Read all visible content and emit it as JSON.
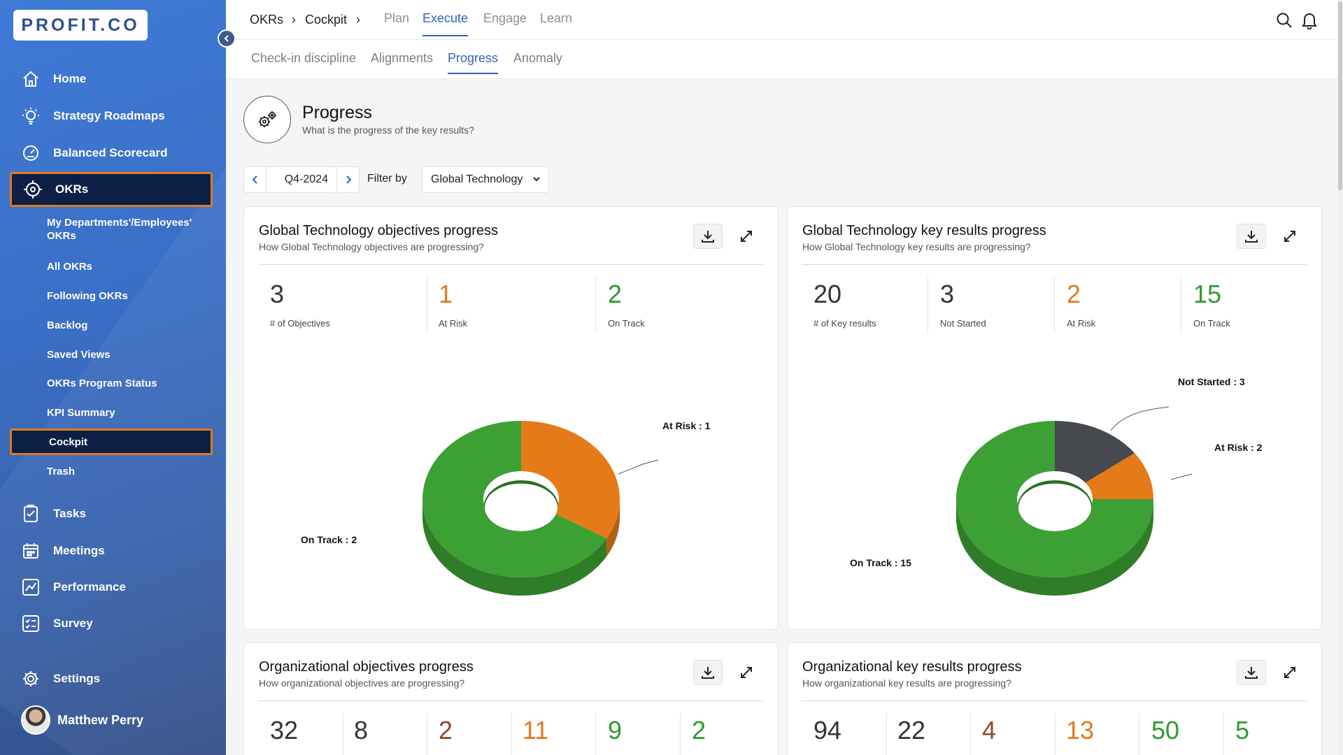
{
  "app": {
    "logo": "PROFIT.CO"
  },
  "sidebar": {
    "items": [
      {
        "label": "Home",
        "icon": "home-icon"
      },
      {
        "label": "Strategy Roadmaps",
        "icon": "lightbulb-icon"
      },
      {
        "label": "Balanced Scorecard",
        "icon": "gauge-icon"
      },
      {
        "label": "OKRs",
        "icon": "target-icon",
        "active": true
      },
      {
        "label": "Tasks",
        "icon": "clipboard-icon"
      },
      {
        "label": "Meetings",
        "icon": "calendar-icon"
      },
      {
        "label": "Performance",
        "icon": "chart-line-icon"
      },
      {
        "label": "Survey",
        "icon": "checklist-icon"
      },
      {
        "label": "Settings",
        "icon": "gear-icon"
      }
    ],
    "okr_subitems": [
      {
        "label": "My Departments'/Employees' OKRs"
      },
      {
        "label": "All OKRs"
      },
      {
        "label": "Following OKRs"
      },
      {
        "label": "Backlog"
      },
      {
        "label": "Saved Views"
      },
      {
        "label": "OKRs Program Status"
      },
      {
        "label": "KPI Summary"
      },
      {
        "label": "Cockpit",
        "active": true
      },
      {
        "label": "Trash"
      }
    ],
    "user": "Matthew Perry"
  },
  "breadcrumb": {
    "first": "OKRs",
    "second": "Cockpit",
    "sep": "›"
  },
  "top_tabs": [
    {
      "label": "Plan"
    },
    {
      "label": "Execute",
      "active": true
    },
    {
      "label": "Engage"
    },
    {
      "label": "Learn"
    }
  ],
  "sub_tabs": [
    {
      "label": "Check-in discipline"
    },
    {
      "label": "Alignments"
    },
    {
      "label": "Progress",
      "active": true
    },
    {
      "label": "Anomaly"
    }
  ],
  "page": {
    "title": "Progress",
    "subtitle": "What is the progress of the key results?"
  },
  "filters": {
    "period": "Q4-2024",
    "filter_by_label": "Filter by",
    "filter_value": "Global Technology"
  },
  "colors": {
    "on_track": "#3da035",
    "at_risk": "#e57a18",
    "not_started": "#46494d",
    "accent": "#2f62b8"
  },
  "cards": {
    "gt_objectives": {
      "title": "Global Technology objectives progress",
      "subtitle": "How Global Technology objectives are progressing?",
      "stats": [
        {
          "value": "3",
          "label": "# of Objectives"
        },
        {
          "value": "1",
          "label": "At Risk"
        },
        {
          "value": "2",
          "label": "On Track"
        }
      ],
      "chart_labels": {
        "at_risk": "At Risk : 1",
        "on_track": "On Track : 2"
      }
    },
    "gt_key_results": {
      "title": "Global Technology key results progress",
      "subtitle": "How Global Technology key results are progressing?",
      "stats": [
        {
          "value": "20",
          "label": "# of Key results"
        },
        {
          "value": "3",
          "label": "Not Started"
        },
        {
          "value": "2",
          "label": "At Risk"
        },
        {
          "value": "15",
          "label": "On Track"
        }
      ],
      "chart_labels": {
        "not_started": "Not Started : 3",
        "at_risk": "At Risk : 2",
        "on_track": "On Track : 15"
      }
    },
    "org_objectives": {
      "title": "Organizational objectives progress",
      "subtitle": "How organizational objectives are progressing?",
      "stats": [
        "32",
        "8",
        "2",
        "11",
        "9",
        "2"
      ]
    },
    "org_key_results": {
      "title": "Organizational key results progress",
      "subtitle": "How organizational key results are progressing?",
      "stats": [
        "94",
        "22",
        "4",
        "13",
        "50",
        "5"
      ]
    }
  },
  "chart_data": [
    {
      "type": "pie",
      "categories": [
        "At Risk",
        "On Track"
      ],
      "values": [
        1,
        2
      ]
    },
    {
      "type": "pie",
      "categories": [
        "Not Started",
        "At Risk",
        "On Track"
      ],
      "values": [
        3,
        2,
        15
      ]
    }
  ]
}
